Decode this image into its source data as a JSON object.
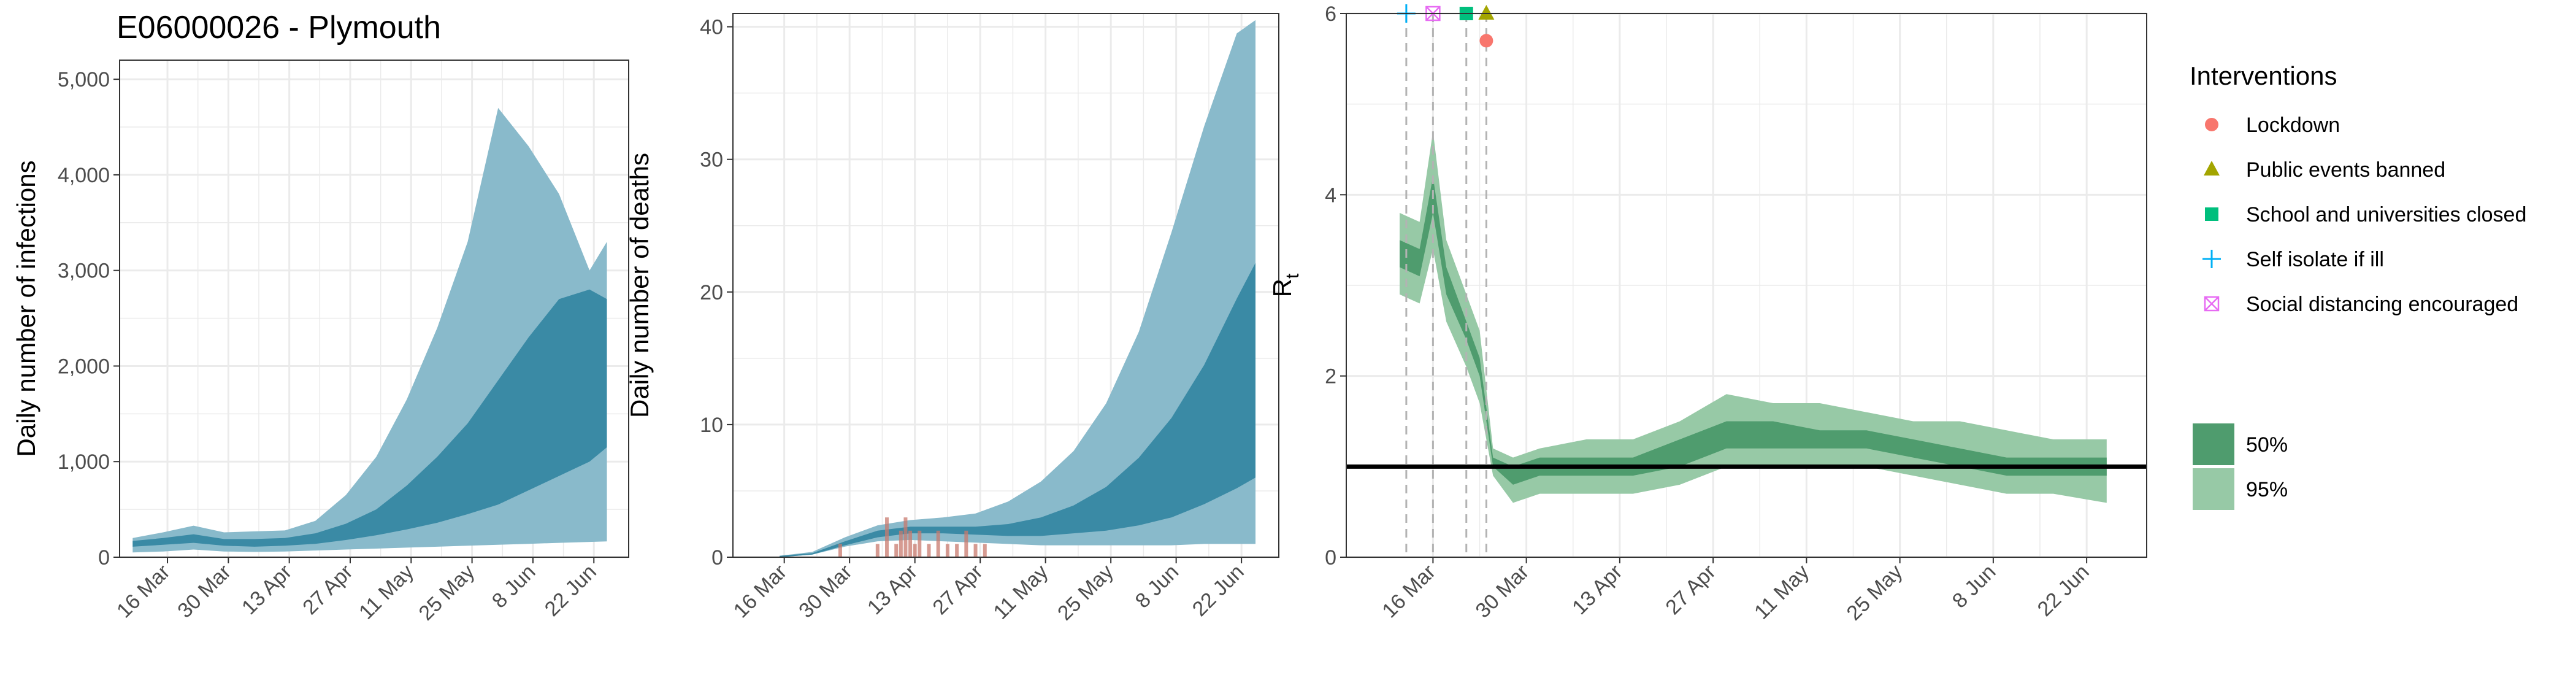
{
  "figure_title": "E06000026 - Plymouth",
  "colors": {
    "infections_95": "#89bacb",
    "infections_50": "#3a8aa5",
    "rt_95": "#97c9a6",
    "rt_50": "#4f9c6e",
    "grid": "#ebebeb",
    "observed_deaths": "#c87a6d",
    "threshold_line": "#000000"
  },
  "chart_data": [
    {
      "type": "area",
      "id": "infections",
      "title": "E06000026 - Plymouth",
      "ylabel": "Daily number of infections",
      "xlabel": "",
      "x_ticks": [
        "16 Mar",
        "30 Mar",
        "13 Apr",
        "27 Apr",
        "11 May",
        "25 May",
        "8 Jun",
        "22 Jun"
      ],
      "y_ticks": [
        "0",
        "1,000",
        "2,000",
        "3,000",
        "4,000",
        "5,000"
      ],
      "ylim": [
        0,
        5200
      ],
      "grid": true,
      "series": [
        {
          "name": "95%",
          "x": [
            "03-08",
            "03-15",
            "03-22",
            "03-29",
            "04-05",
            "04-12",
            "04-19",
            "04-26",
            "05-03",
            "05-10",
            "05-17",
            "05-24",
            "05-31",
            "06-07",
            "06-14",
            "06-21",
            "06-25"
          ],
          "lower": [
            50,
            60,
            80,
            60,
            55,
            60,
            70,
            80,
            90,
            100,
            110,
            120,
            130,
            140,
            150,
            160,
            165
          ],
          "upper": [
            200,
            260,
            330,
            260,
            270,
            280,
            380,
            650,
            1050,
            1650,
            2400,
            3300,
            4700,
            4300,
            3800,
            3000,
            3300
          ]
        },
        {
          "name": "50%",
          "x": [
            "03-08",
            "03-15",
            "03-22",
            "03-29",
            "04-05",
            "04-12",
            "04-19",
            "04-26",
            "05-03",
            "05-10",
            "05-17",
            "05-24",
            "05-31",
            "06-07",
            "06-14",
            "06-21",
            "06-25"
          ],
          "lower": [
            110,
            130,
            150,
            120,
            110,
            120,
            140,
            180,
            230,
            290,
            360,
            450,
            550,
            700,
            850,
            1000,
            1150
          ],
          "upper": [
            170,
            200,
            240,
            190,
            190,
            200,
            250,
            350,
            500,
            750,
            1050,
            1400,
            1850,
            2300,
            2700,
            2800,
            2700
          ]
        }
      ]
    },
    {
      "type": "area",
      "id": "deaths",
      "ylabel": "Daily number of deaths",
      "xlabel": "",
      "x_ticks": [
        "16 Mar",
        "30 Mar",
        "13 Apr",
        "27 Apr",
        "11 May",
        "25 May",
        "8 Jun",
        "22 Jun"
      ],
      "y_ticks": [
        "0",
        "10",
        "20",
        "30",
        "40"
      ],
      "ylim": [
        0,
        41
      ],
      "grid": true,
      "series": [
        {
          "name": "95%",
          "x": [
            "03-15",
            "03-22",
            "03-29",
            "04-05",
            "04-12",
            "04-19",
            "04-26",
            "05-03",
            "05-10",
            "05-17",
            "05-24",
            "05-31",
            "06-07",
            "06-14",
            "06-21",
            "06-25"
          ],
          "lower": [
            0,
            0.2,
            0.8,
            1.2,
            1.3,
            1.2,
            1.1,
            1.0,
            0.9,
            0.9,
            0.9,
            0.9,
            0.9,
            1.0,
            1.0,
            1.0
          ],
          "upper": [
            0.1,
            0.4,
            1.5,
            2.4,
            2.8,
            3.0,
            3.3,
            4.2,
            5.7,
            8.0,
            11.6,
            17.0,
            24.5,
            32.5,
            39.5,
            40.5
          ]
        },
        {
          "name": "50%",
          "x": [
            "03-15",
            "03-22",
            "03-29",
            "04-05",
            "04-12",
            "04-19",
            "04-26",
            "05-03",
            "05-10",
            "05-17",
            "05-24",
            "05-31",
            "06-07",
            "06-14",
            "06-21",
            "06-25"
          ],
          "lower": [
            0,
            0.2,
            0.9,
            1.5,
            1.8,
            1.8,
            1.7,
            1.6,
            1.6,
            1.8,
            2.0,
            2.4,
            3.0,
            4.0,
            5.2,
            6.0
          ],
          "upper": [
            0.1,
            0.3,
            1.2,
            2.0,
            2.3,
            2.3,
            2.3,
            2.5,
            3.0,
            3.9,
            5.3,
            7.5,
            10.5,
            14.5,
            19.5,
            22.2
          ]
        }
      ],
      "observed_deaths": {
        "x": [
          "03-28",
          "04-05",
          "04-07",
          "04-09",
          "04-10",
          "04-11",
          "04-12",
          "04-13",
          "04-14",
          "04-16",
          "04-18",
          "04-20",
          "04-22",
          "04-24",
          "04-26",
          "04-28"
        ],
        "values": [
          1,
          1,
          3,
          1,
          2,
          3,
          2,
          1,
          2,
          1,
          2,
          1,
          1,
          2,
          1,
          1
        ]
      }
    },
    {
      "type": "area",
      "id": "rt",
      "ylabel": "R",
      "ylabel_subscript": "t",
      "xlabel": "",
      "x_ticks": [
        "16 Mar",
        "30 Mar",
        "13 Apr",
        "27 Apr",
        "11 May",
        "25 May",
        "8 Jun",
        "22 Jun"
      ],
      "y_ticks": [
        "0",
        "2",
        "4",
        "6"
      ],
      "ylim": [
        0,
        6
      ],
      "grid": true,
      "threshold": 1,
      "series": [
        {
          "name": "95%",
          "x": [
            "03-11",
            "03-14",
            "03-16",
            "03-18",
            "03-21",
            "03-23",
            "03-25",
            "03-28",
            "04-01",
            "04-08",
            "04-15",
            "04-22",
            "04-29",
            "05-06",
            "05-13",
            "05-20",
            "05-27",
            "06-03",
            "06-10",
            "06-17",
            "06-25"
          ],
          "lower": [
            2.9,
            2.8,
            3.4,
            2.6,
            2.1,
            1.7,
            0.9,
            0.6,
            0.7,
            0.7,
            0.7,
            0.8,
            1.0,
            1.0,
            1.0,
            1.0,
            0.9,
            0.8,
            0.7,
            0.7,
            0.6
          ],
          "upper": [
            3.8,
            3.7,
            4.7,
            3.5,
            2.9,
            2.5,
            1.2,
            1.1,
            1.2,
            1.3,
            1.3,
            1.5,
            1.8,
            1.7,
            1.7,
            1.6,
            1.5,
            1.5,
            1.4,
            1.3,
            1.3
          ]
        },
        {
          "name": "50%",
          "x": [
            "03-11",
            "03-14",
            "03-16",
            "03-18",
            "03-21",
            "03-23",
            "03-25",
            "03-28",
            "04-01",
            "04-08",
            "04-15",
            "04-22",
            "04-29",
            "05-06",
            "05-13",
            "05-20",
            "05-27",
            "06-03",
            "06-10",
            "06-17",
            "06-25"
          ],
          "lower": [
            3.2,
            3.1,
            3.8,
            2.9,
            2.4,
            2.0,
            1.0,
            0.8,
            0.9,
            0.9,
            0.9,
            1.0,
            1.2,
            1.2,
            1.2,
            1.2,
            1.1,
            1.0,
            0.9,
            0.9,
            0.9
          ],
          "upper": [
            3.5,
            3.4,
            4.2,
            3.2,
            2.6,
            2.2,
            1.1,
            1.0,
            1.1,
            1.1,
            1.1,
            1.3,
            1.5,
            1.5,
            1.4,
            1.4,
            1.3,
            1.2,
            1.1,
            1.1,
            1.1
          ]
        }
      ],
      "interventions": [
        {
          "label": "Self isolate if ill",
          "date": "03-12",
          "shape": "plus",
          "color": "#00b0f6",
          "y": 6
        },
        {
          "label": "Social distancing encouraged",
          "date": "03-16",
          "shape": "boxx",
          "color": "#e76bf3",
          "y": 6
        },
        {
          "label": "School and universities closed",
          "date": "03-21",
          "shape": "square",
          "color": "#00bf7d",
          "y": 6
        },
        {
          "label": "Public events banned",
          "date": "03-24",
          "shape": "triangle",
          "color": "#a3a500",
          "y": 6
        },
        {
          "label": "Lockdown",
          "date": "03-24",
          "shape": "circle",
          "color": "#f8766d",
          "y": 5.7
        }
      ]
    }
  ],
  "legend": {
    "title": "Interventions",
    "items": [
      {
        "label": "Lockdown",
        "shape": "circle",
        "color": "#f8766d"
      },
      {
        "label": "Public events banned",
        "shape": "triangle",
        "color": "#a3a500"
      },
      {
        "label": "School and universities closed",
        "shape": "square",
        "color": "#00bf7d"
      },
      {
        "label": "Self isolate if ill",
        "shape": "plus",
        "color": "#00b0f6"
      },
      {
        "label": "Social distancing encouraged",
        "shape": "boxx",
        "color": "#e76bf3"
      }
    ],
    "intervals": [
      {
        "label": "50%",
        "color": "#4f9c6e"
      },
      {
        "label": "95%",
        "color": "#97c9a6"
      }
    ]
  }
}
